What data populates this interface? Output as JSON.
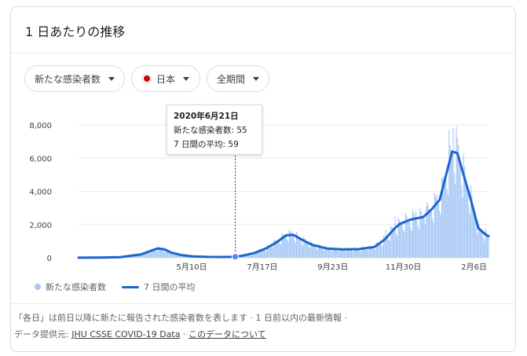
{
  "header": {
    "title": "1 日あたりの推移"
  },
  "filters": {
    "metric": "新たな感染者数",
    "country": "日本",
    "period": "全期間",
    "country_flag_color": "#d50000"
  },
  "tooltip": {
    "date": "2020年6月21日",
    "new_cases_label": "新たな感染者数: 55",
    "avg_label": "7 日間の平均: 59"
  },
  "legend": {
    "bars": "新たな感染者数",
    "line": "7 日間の平均"
  },
  "footer": {
    "note": "「各日」は前日以降に新たに報告された感染者数を表します",
    "dot1": "·",
    "updated": "1 日前以内の最新情報",
    "dot2": "·",
    "source_prefix": "データ提供元:",
    "source_link": "JHU CSSE COVID-19 Data",
    "dot3": "·",
    "about_link": "このデータについて"
  },
  "chart_data": {
    "type": "bar",
    "colors": {
      "bars": "#a7c7f5",
      "line": "#1a66cc",
      "grid": "#e8eaed"
    },
    "ylim": [
      0,
      8000
    ],
    "yticks": [
      0,
      2000,
      4000,
      6000,
      8000
    ],
    "ytick_labels": [
      "0",
      "2,000",
      "4,000",
      "6,000",
      "8,000"
    ],
    "xlim": [
      0,
      395
    ],
    "xticks": [
      {
        "day": 109,
        "label": "5月10日"
      },
      {
        "day": 177,
        "label": "7月17日"
      },
      {
        "day": 245,
        "label": "9月23日"
      },
      {
        "day": 313,
        "label": "11月30日"
      },
      {
        "day": 381,
        "label": "2月6日"
      }
    ],
    "highlight_day": 151,
    "highlight_value": 59,
    "series": [
      {
        "name": "7 日間の平均",
        "kind": "line",
        "points": [
          [
            0,
            5
          ],
          [
            20,
            10
          ],
          [
            40,
            40
          ],
          [
            60,
            200
          ],
          [
            70,
            420
          ],
          [
            76,
            560
          ],
          [
            82,
            520
          ],
          [
            90,
            300
          ],
          [
            100,
            150
          ],
          [
            110,
            80
          ],
          [
            125,
            50
          ],
          [
            140,
            45
          ],
          [
            151,
            59
          ],
          [
            160,
            150
          ],
          [
            170,
            300
          ],
          [
            180,
            550
          ],
          [
            190,
            900
          ],
          [
            200,
            1350
          ],
          [
            207,
            1380
          ],
          [
            215,
            1100
          ],
          [
            225,
            780
          ],
          [
            240,
            550
          ],
          [
            255,
            500
          ],
          [
            270,
            520
          ],
          [
            285,
            650
          ],
          [
            295,
            1100
          ],
          [
            305,
            1800
          ],
          [
            310,
            2050
          ],
          [
            320,
            2300
          ],
          [
            332,
            2450
          ],
          [
            340,
            2900
          ],
          [
            348,
            3500
          ],
          [
            355,
            5200
          ],
          [
            360,
            6400
          ],
          [
            365,
            6300
          ],
          [
            370,
            5200
          ],
          [
            378,
            3500
          ],
          [
            385,
            1800
          ],
          [
            392,
            1400
          ],
          [
            395,
            1300
          ]
        ]
      },
      {
        "name": "新たな感染者数",
        "kind": "bar",
        "peaks": [
          [
            361,
            7800
          ],
          [
            357,
            7700
          ],
          [
            366,
            6800
          ],
          [
            350,
            4800
          ],
          [
            345,
            3800
          ],
          [
            335,
            3100
          ],
          [
            325,
            2800
          ],
          [
            315,
            2700
          ],
          [
            305,
            2500
          ],
          [
            296,
            1700
          ],
          [
            205,
            1600
          ],
          [
            188,
            1000
          ]
        ]
      }
    ]
  }
}
